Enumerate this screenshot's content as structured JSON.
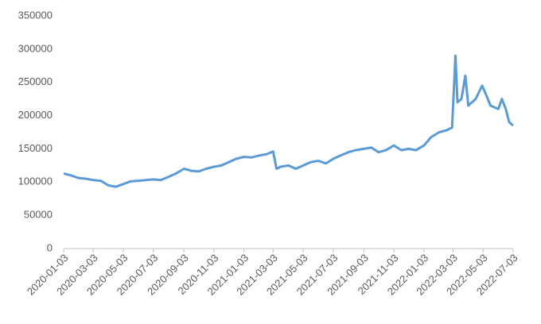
{
  "chart_data": {
    "type": "line",
    "x": [
      "2020-01-03",
      "2020-01-18",
      "2020-02-03",
      "2020-02-18",
      "2020-03-03",
      "2020-03-18",
      "2020-04-03",
      "2020-04-18",
      "2020-05-03",
      "2020-05-18",
      "2020-06-03",
      "2020-06-18",
      "2020-07-03",
      "2020-07-18",
      "2020-08-03",
      "2020-08-18",
      "2020-09-03",
      "2020-09-18",
      "2020-10-03",
      "2020-10-18",
      "2020-11-03",
      "2020-11-18",
      "2020-12-03",
      "2020-12-18",
      "2021-01-03",
      "2021-01-18",
      "2021-02-03",
      "2021-02-18",
      "2021-03-03",
      "2021-03-10",
      "2021-03-18",
      "2021-04-03",
      "2021-04-18",
      "2021-05-03",
      "2021-05-18",
      "2021-06-03",
      "2021-06-18",
      "2021-07-03",
      "2021-07-18",
      "2021-08-03",
      "2021-08-18",
      "2021-09-03",
      "2021-09-18",
      "2021-10-03",
      "2021-10-18",
      "2021-11-03",
      "2021-11-18",
      "2021-12-03",
      "2021-12-18",
      "2022-01-03",
      "2022-01-18",
      "2022-02-03",
      "2022-02-18",
      "2022-03-01",
      "2022-03-08",
      "2022-03-12",
      "2022-03-20",
      "2022-03-28",
      "2022-04-03",
      "2022-04-18",
      "2022-05-01",
      "2022-05-10",
      "2022-05-18",
      "2022-06-03",
      "2022-06-10",
      "2022-06-18",
      "2022-06-25",
      "2022-07-03"
    ],
    "series": [
      {
        "color": "#5b9bd5",
        "values": [
          113000,
          110000,
          106000,
          105000,
          103000,
          102000,
          95000,
          93000,
          97000,
          101000,
          102000,
          103000,
          104000,
          103000,
          108000,
          113000,
          120000,
          117000,
          116000,
          120000,
          123000,
          125000,
          130000,
          135000,
          138000,
          137000,
          140000,
          142000,
          146000,
          120000,
          123000,
          125000,
          120000,
          125000,
          130000,
          132000,
          128000,
          135000,
          140000,
          145000,
          148000,
          150000,
          152000,
          145000,
          148000,
          155000,
          148000,
          150000,
          148000,
          155000,
          168000,
          175000,
          178000,
          182000,
          290000,
          220000,
          225000,
          260000,
          215000,
          225000,
          245000,
          230000,
          215000,
          210000,
          225000,
          210000,
          190000,
          185000
        ]
      }
    ],
    "xlim": [
      "2020-01-03",
      "2022-07-03"
    ],
    "xticks": [
      "2020-01-03",
      "2020-03-03",
      "2020-05-03",
      "2020-07-03",
      "2020-09-03",
      "2020-11-03",
      "2021-01-03",
      "2021-03-03",
      "2021-05-03",
      "2021-07-03",
      "2021-09-03",
      "2021-11-03",
      "2022-01-03",
      "2022-03-03",
      "2022-05-03",
      "2022-07-03"
    ],
    "ylim": [
      0,
      350000
    ],
    "yticks": [
      0,
      50000,
      100000,
      150000,
      200000,
      250000,
      300000,
      350000
    ]
  }
}
